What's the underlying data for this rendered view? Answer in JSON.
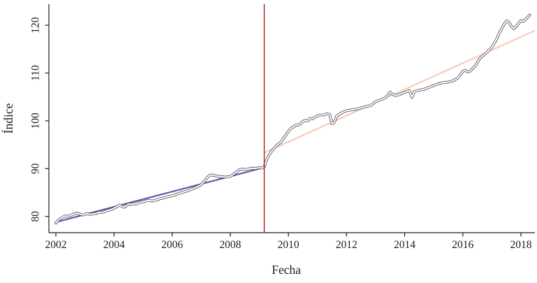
{
  "figure": {
    "background": "#ffffff"
  },
  "chart_data": {
    "type": "line",
    "title": "",
    "xlabel": "Fecha",
    "ylabel": "Índice",
    "xlim": [
      2001.76,
      2018.48
    ],
    "ylim": [
      76.6,
      124.4
    ],
    "x_ticks": [
      2002,
      2004,
      2006,
      2008,
      2010,
      2012,
      2014,
      2016,
      2018
    ],
    "y_ticks": [
      80,
      90,
      100,
      110,
      120
    ],
    "grid": false,
    "legend": "none",
    "frame": "left-bottom",
    "axis_color": "#1c1c1c",
    "vline": {
      "x": 2009.17,
      "color": "#9e1b1b",
      "width": 1.4
    },
    "series": [
      {
        "name": "pre-break-linear-fit",
        "style": {
          "kind": "solid",
          "color": "#5c5ca8",
          "width": 2.2
        },
        "points": [
          [
            2002.0,
            78.8
          ],
          [
            2009.17,
            90.25
          ]
        ]
      },
      {
        "name": "post-break-linear-fit",
        "style": {
          "kind": "solid",
          "color": "#f9cbba",
          "width": 2.2
        },
        "points": [
          [
            2009.2,
            93.4
          ],
          [
            2018.45,
            118.8
          ]
        ]
      },
      {
        "name": "indice-observed",
        "style": {
          "kind": "outlined",
          "outer_color": "#42424e",
          "outer_width": 3.7,
          "inner_color": "#ffffff",
          "inner_width": 2.1
        },
        "points": [
          [
            2002.0,
            78.6
          ],
          [
            2002.08,
            79.2
          ],
          [
            2002.17,
            79.6
          ],
          [
            2002.25,
            79.9
          ],
          [
            2002.33,
            80.1
          ],
          [
            2002.42,
            80.0
          ],
          [
            2002.5,
            80.2
          ],
          [
            2002.58,
            80.4
          ],
          [
            2002.67,
            80.6
          ],
          [
            2002.75,
            80.7
          ],
          [
            2002.83,
            80.5
          ],
          [
            2002.92,
            80.3
          ],
          [
            2003.0,
            80.4
          ],
          [
            2003.08,
            80.6
          ],
          [
            2003.17,
            80.4
          ],
          [
            2003.25,
            80.5
          ],
          [
            2003.33,
            80.6
          ],
          [
            2003.42,
            80.7
          ],
          [
            2003.5,
            80.9
          ],
          [
            2003.58,
            80.8
          ],
          [
            2003.67,
            81.0
          ],
          [
            2003.75,
            81.2
          ],
          [
            2003.83,
            81.3
          ],
          [
            2003.92,
            81.5
          ],
          [
            2004.0,
            81.7
          ],
          [
            2004.08,
            82.0
          ],
          [
            2004.17,
            82.3
          ],
          [
            2004.25,
            82.2
          ],
          [
            2004.33,
            81.9
          ],
          [
            2004.42,
            82.2
          ],
          [
            2004.5,
            82.6
          ],
          [
            2004.58,
            82.5
          ],
          [
            2004.67,
            82.7
          ],
          [
            2004.75,
            82.6
          ],
          [
            2004.83,
            82.8
          ],
          [
            2004.92,
            83.0
          ],
          [
            2005.0,
            83.0
          ],
          [
            2005.08,
            83.2
          ],
          [
            2005.17,
            83.4
          ],
          [
            2005.25,
            83.3
          ],
          [
            2005.33,
            83.2
          ],
          [
            2005.42,
            83.4
          ],
          [
            2005.5,
            83.5
          ],
          [
            2005.58,
            83.7
          ],
          [
            2005.67,
            83.8
          ],
          [
            2005.75,
            84.0
          ],
          [
            2005.83,
            84.1
          ],
          [
            2005.92,
            84.2
          ],
          [
            2006.0,
            84.3
          ],
          [
            2006.17,
            84.7
          ],
          [
            2006.33,
            85.0
          ],
          [
            2006.5,
            85.3
          ],
          [
            2006.67,
            85.7
          ],
          [
            2006.83,
            86.1
          ],
          [
            2007.0,
            86.6
          ],
          [
            2007.08,
            87.2
          ],
          [
            2007.17,
            87.9
          ],
          [
            2007.25,
            88.4
          ],
          [
            2007.33,
            88.7
          ],
          [
            2007.42,
            88.6
          ],
          [
            2007.5,
            88.5
          ],
          [
            2007.58,
            88.4
          ],
          [
            2007.67,
            88.3
          ],
          [
            2007.75,
            88.3
          ],
          [
            2007.83,
            88.2
          ],
          [
            2007.92,
            88.3
          ],
          [
            2008.0,
            88.4
          ],
          [
            2008.08,
            88.7
          ],
          [
            2008.17,
            89.1
          ],
          [
            2008.25,
            89.5
          ],
          [
            2008.33,
            89.8
          ],
          [
            2008.42,
            89.9
          ],
          [
            2008.5,
            89.8
          ],
          [
            2008.58,
            89.9
          ],
          [
            2008.67,
            90.0
          ],
          [
            2008.75,
            90.1
          ],
          [
            2008.83,
            90.0
          ],
          [
            2008.92,
            90.1
          ],
          [
            2009.0,
            90.2
          ],
          [
            2009.08,
            90.1
          ],
          [
            2009.17,
            90.5
          ],
          [
            2009.25,
            91.8
          ],
          [
            2009.33,
            92.8
          ],
          [
            2009.42,
            93.6
          ],
          [
            2009.5,
            94.2
          ],
          [
            2009.58,
            94.8
          ],
          [
            2009.67,
            95.2
          ],
          [
            2009.75,
            95.6
          ],
          [
            2009.83,
            96.3
          ],
          [
            2009.92,
            97.1
          ],
          [
            2010.0,
            97.8
          ],
          [
            2010.08,
            98.4
          ],
          [
            2010.17,
            98.7
          ],
          [
            2010.25,
            99.1
          ],
          [
            2010.33,
            99.1
          ],
          [
            2010.42,
            99.4
          ],
          [
            2010.5,
            99.9
          ],
          [
            2010.58,
            100.1
          ],
          [
            2010.67,
            100.0
          ],
          [
            2010.75,
            100.5
          ],
          [
            2010.83,
            100.4
          ],
          [
            2010.92,
            100.8
          ],
          [
            2011.0,
            101.0
          ],
          [
            2011.08,
            101.2
          ],
          [
            2011.17,
            101.2
          ],
          [
            2011.25,
            101.3
          ],
          [
            2011.33,
            101.5
          ],
          [
            2011.42,
            101.3
          ],
          [
            2011.5,
            99.4
          ],
          [
            2011.58,
            99.7
          ],
          [
            2011.67,
            101.1
          ],
          [
            2011.75,
            101.3
          ],
          [
            2011.83,
            101.7
          ],
          [
            2011.92,
            101.9
          ],
          [
            2012.0,
            102.1
          ],
          [
            2012.17,
            102.3
          ],
          [
            2012.33,
            102.4
          ],
          [
            2012.5,
            102.7
          ],
          [
            2012.67,
            103.0
          ],
          [
            2012.83,
            103.2
          ],
          [
            2013.0,
            104.0
          ],
          [
            2013.17,
            104.4
          ],
          [
            2013.33,
            104.8
          ],
          [
            2013.5,
            106.0
          ],
          [
            2013.58,
            105.6
          ],
          [
            2013.67,
            105.3
          ],
          [
            2013.83,
            105.5
          ],
          [
            2014.0,
            106.0
          ],
          [
            2014.17,
            106.3
          ],
          [
            2014.25,
            104.9
          ],
          [
            2014.33,
            106.1
          ],
          [
            2014.5,
            106.4
          ],
          [
            2014.67,
            106.6
          ],
          [
            2014.83,
            107.0
          ],
          [
            2015.0,
            107.4
          ],
          [
            2015.17,
            107.8
          ],
          [
            2015.33,
            108.0
          ],
          [
            2015.5,
            108.1
          ],
          [
            2015.67,
            108.4
          ],
          [
            2015.83,
            109.0
          ],
          [
            2016.0,
            110.3
          ],
          [
            2016.08,
            110.6
          ],
          [
            2016.17,
            110.2
          ],
          [
            2016.25,
            110.4
          ],
          [
            2016.33,
            110.9
          ],
          [
            2016.42,
            111.4
          ],
          [
            2016.5,
            112.2
          ],
          [
            2016.58,
            113.0
          ],
          [
            2016.67,
            113.5
          ],
          [
            2016.75,
            113.9
          ],
          [
            2016.83,
            114.3
          ],
          [
            2016.92,
            114.9
          ],
          [
            2017.0,
            115.4
          ],
          [
            2017.08,
            116.2
          ],
          [
            2017.17,
            117.2
          ],
          [
            2017.25,
            118.3
          ],
          [
            2017.33,
            119.2
          ],
          [
            2017.42,
            120.2
          ],
          [
            2017.5,
            120.9
          ],
          [
            2017.58,
            120.7
          ],
          [
            2017.67,
            119.8
          ],
          [
            2017.75,
            119.3
          ],
          [
            2017.83,
            119.6
          ],
          [
            2017.92,
            120.4
          ],
          [
            2018.0,
            121.0
          ],
          [
            2018.08,
            120.8
          ],
          [
            2018.17,
            121.3
          ],
          [
            2018.25,
            121.8
          ],
          [
            2018.3,
            122.1
          ]
        ]
      }
    ]
  }
}
